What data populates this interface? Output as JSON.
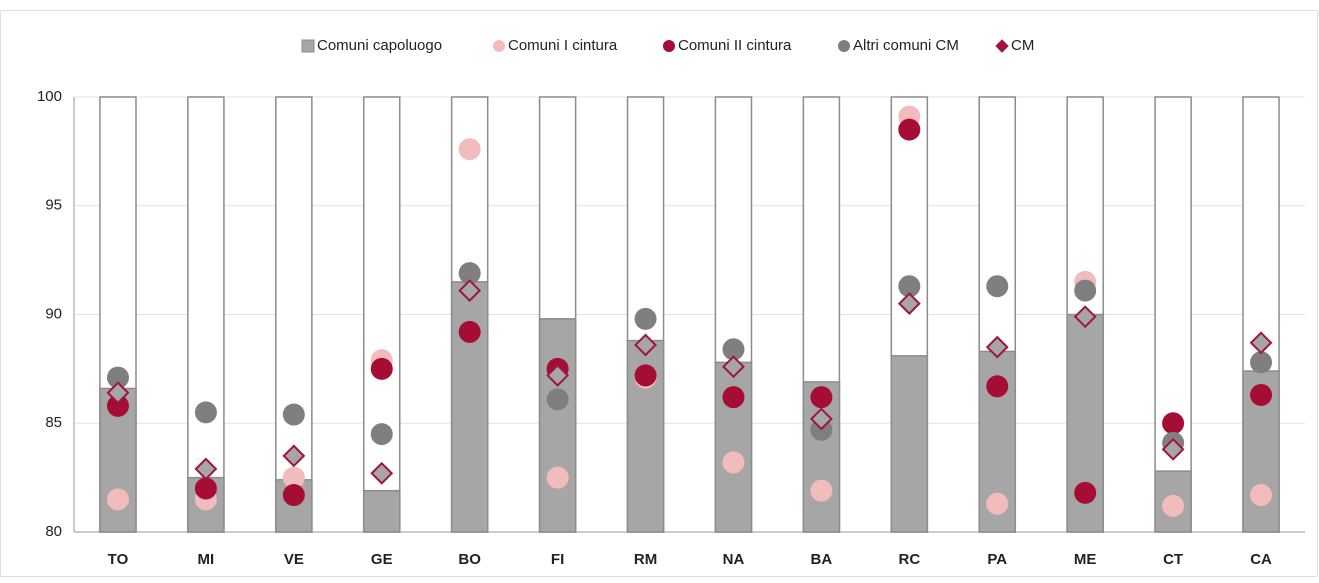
{
  "chart_data": {
    "type": "bar",
    "categories": [
      "TO",
      "MI",
      "VE",
      "GE",
      "BO",
      "FI",
      "RM",
      "NA",
      "BA",
      "RC",
      "PA",
      "ME",
      "CT",
      "CA"
    ],
    "series": [
      {
        "name": "Comuni capoluogo",
        "marker": "bar",
        "color": "#a6a6a6",
        "values": [
          86.6,
          82.5,
          82.4,
          81.9,
          91.5,
          89.8,
          88.8,
          87.8,
          86.9,
          88.1,
          88.3,
          90.0,
          82.8,
          87.4
        ]
      },
      {
        "name": "Comuni I cintura",
        "marker": "circle",
        "color": "#f2bcbc",
        "values": [
          81.5,
          81.5,
          82.5,
          87.9,
          97.6,
          82.5,
          87.1,
          83.2,
          81.9,
          99.1,
          81.3,
          91.5,
          81.2,
          81.7
        ]
      },
      {
        "name": "Comuni II cintura",
        "marker": "circle",
        "color": "#a50d35",
        "values": [
          85.8,
          82.0,
          81.7,
          87.5,
          89.2,
          87.5,
          87.2,
          86.2,
          86.2,
          98.5,
          86.7,
          81.8,
          85.0,
          86.3
        ]
      },
      {
        "name": "Altri comuni CM",
        "marker": "circle",
        "color": "#7f7f7f",
        "values": [
          87.1,
          85.5,
          85.4,
          84.5,
          91.9,
          86.1,
          89.8,
          88.4,
          84.7,
          91.3,
          91.3,
          91.1,
          84.1,
          87.8
        ]
      },
      {
        "name": "CM",
        "marker": "diamond",
        "color": "#a6a6a6",
        "stroke": "#a0153e",
        "values": [
          86.4,
          82.9,
          83.5,
          82.7,
          91.1,
          87.2,
          88.6,
          87.6,
          85.2,
          90.5,
          88.5,
          89.9,
          83.8,
          88.7
        ]
      }
    ],
    "ylim": [
      80,
      100
    ],
    "yticks": [
      80,
      85,
      90,
      95,
      100
    ],
    "grid": true,
    "legend": "top"
  }
}
